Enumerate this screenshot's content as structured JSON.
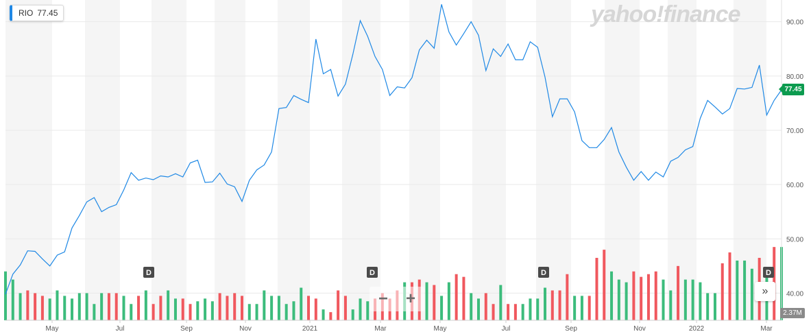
{
  "header": {
    "symbol": "RIO",
    "price": "77.45",
    "watermark": "yahoo!finance"
  },
  "controls": {
    "zoom_out": "−",
    "zoom_in": "+",
    "expand": "»"
  },
  "colors": {
    "line": "#1e88e5",
    "up": "#3cbc7c",
    "down": "#f0585e",
    "band": "#f5f5f5",
    "grid": "#e9e9e9",
    "price_tag": "#0c9b4f",
    "marker": "#4a4a4a"
  },
  "chart_data": {
    "type": "line",
    "title": "",
    "xlabel": "",
    "ylabel": "",
    "ylim": [
      35,
      94
    ],
    "y_ticks": [
      "90.00",
      "80.00",
      "70.00",
      "60.00",
      "50.00",
      "40.00"
    ],
    "x_tick_labels": [
      "May",
      "Jul",
      "Sep",
      "Nov",
      "2021",
      "Mar",
      "May",
      "Jul",
      "Sep",
      "Nov",
      "2022",
      "Mar"
    ],
    "last_price_label": "77.45",
    "volume_label": "2.37M",
    "dividend_marker": "D",
    "dividend_count": 4,
    "series": [
      {
        "values": [
          39.8,
          43.5,
          45.2,
          47.8,
          47.7,
          46.3,
          45.0,
          47.0,
          47.6,
          52.0,
          54.3,
          56.8,
          57.6,
          55.0,
          55.8,
          56.3,
          59.0,
          62.2,
          60.8,
          61.2,
          60.9,
          61.6,
          61.4,
          62.0,
          61.4,
          64.0,
          64.5,
          60.4,
          60.5,
          62.1,
          60.1,
          59.6,
          56.9,
          60.8,
          62.7,
          63.6,
          66.0,
          74.0,
          74.2,
          76.4,
          75.7,
          75.1,
          86.8,
          80.4,
          81.2,
          76.3,
          78.5,
          84.0,
          90.2,
          87.3,
          83.6,
          81.2,
          76.4,
          78.0,
          77.8,
          79.7,
          84.8,
          86.6,
          85.1,
          93.2,
          88.1,
          85.7,
          87.8,
          90.0,
          87.5,
          81.0,
          85.0,
          83.6,
          85.9,
          83.0,
          83.0,
          86.3,
          85.3,
          79.8,
          72.5,
          75.8,
          75.8,
          73.4,
          68.1,
          66.8,
          66.8,
          68.3,
          70.5,
          66.0,
          63.2,
          60.8,
          62.4,
          60.8,
          62.3,
          61.4,
          64.3,
          65.0,
          66.4,
          67.0,
          72.2,
          75.5,
          74.3,
          73.0,
          74.0,
          77.7,
          77.6,
          77.9,
          82.0,
          72.8,
          75.5,
          77.45
        ]
      }
    ],
    "volume": {
      "values": [
        44.0,
        42.5,
        40.0,
        40.5,
        40.0,
        39.5,
        39.0,
        40.5,
        39.5,
        39.0,
        40.0,
        40.0,
        38.0,
        40.0,
        40.0,
        40.0,
        39.5,
        38.0,
        39.5,
        40.5,
        38.0,
        39.5,
        40.5,
        39.0,
        39.0,
        38.0,
        38.5,
        39.0,
        38.5,
        40.0,
        39.5,
        40.0,
        39.5,
        38.0,
        38.0,
        40.5,
        39.5,
        39.5,
        38.0,
        38.5,
        41.0,
        39.5,
        39.0,
        37.0,
        36.5,
        40.5,
        39.5,
        37.0,
        39.0,
        38.5,
        39.0,
        40.0,
        39.0,
        40.5,
        42.0,
        42.0,
        42.5,
        42.0,
        41.5,
        39.5,
        42.0,
        43.5,
        43.0,
        40.0,
        39.0,
        40.0,
        38.0,
        41.5,
        38.0,
        38.0,
        38.0,
        39.0,
        39.0,
        41.0,
        40.5,
        40.5,
        43.5,
        39.5,
        39.5,
        39.5,
        46.5,
        48.0,
        44.0,
        42.5,
        42.0,
        44.0,
        43.0,
        43.5,
        44.0,
        42.5,
        40.5,
        45.0,
        42.5,
        42.5,
        42.0,
        40.0,
        40.0,
        45.5,
        47.5,
        46.0,
        46.0,
        44.5,
        46.5,
        44.0,
        48.5,
        48.5
      ],
      "direction": [
        "up",
        "up",
        "up",
        "down",
        "down",
        "down",
        "up",
        "up",
        "up",
        "up",
        "up",
        "up",
        "up",
        "up",
        "down",
        "down",
        "up",
        "up",
        "down",
        "up",
        "down",
        "down",
        "up",
        "up",
        "down",
        "down",
        "up",
        "up",
        "up",
        "down",
        "down",
        "down",
        "down",
        "up",
        "up",
        "up",
        "up",
        "up",
        "up",
        "up",
        "up",
        "down",
        "down",
        "up",
        "down",
        "down",
        "down",
        "up",
        "up",
        "up",
        "down",
        "down",
        "down",
        "down",
        "up",
        "down",
        "down",
        "up",
        "down",
        "up",
        "up",
        "down",
        "down",
        "up",
        "up",
        "down",
        "down",
        "up",
        "down",
        "down",
        "up",
        "up",
        "up",
        "up",
        "down",
        "down",
        "down",
        "up",
        "up",
        "down",
        "down",
        "down",
        "up",
        "up",
        "up",
        "down",
        "down",
        "down",
        "down",
        "up",
        "up",
        "down",
        "up",
        "up",
        "up",
        "up",
        "up",
        "down",
        "down",
        "up",
        "up",
        "up",
        "down",
        "up",
        "down",
        "up"
      ]
    }
  }
}
